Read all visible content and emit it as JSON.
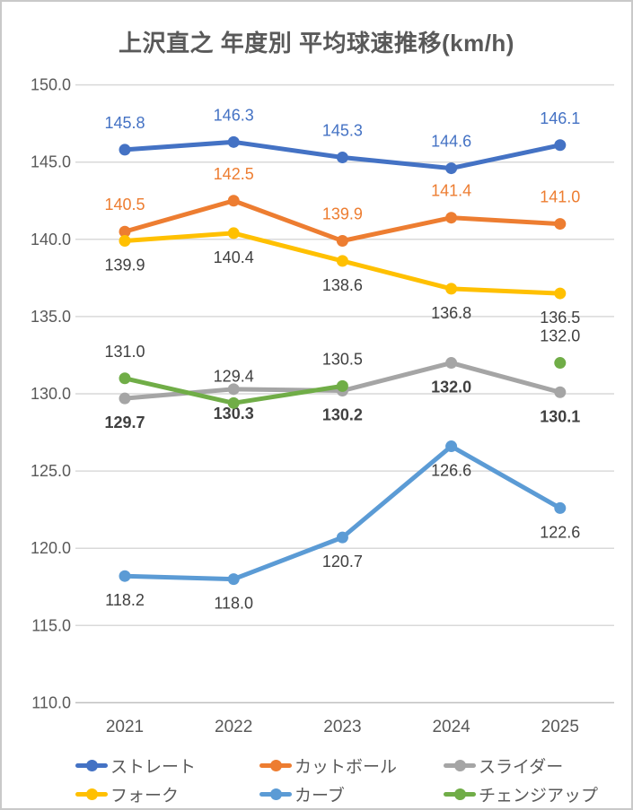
{
  "chart_data": {
    "type": "line",
    "title": "上沢直之 年度別 平均球速推移(km/h)",
    "categories": [
      "2021",
      "2022",
      "2023",
      "2024",
      "2025"
    ],
    "series": [
      {
        "id": "fastball",
        "name": "ストレート",
        "color": "#4472C4",
        "values": [
          145.8,
          146.3,
          145.3,
          144.6,
          146.1
        ],
        "label_color": "#4472C4",
        "label_position": "above",
        "label_bold": false
      },
      {
        "id": "cutter",
        "name": "カットボール",
        "color": "#ED7D31",
        "values": [
          140.5,
          142.5,
          139.9,
          141.4,
          141.0
        ],
        "label_color": "#ED7D31",
        "label_position": "above",
        "label_bold": false
      },
      {
        "id": "slider",
        "name": "スライダー",
        "color": "#A5A5A5",
        "values": [
          129.7,
          130.3,
          130.2,
          132.0,
          130.1
        ],
        "label_color": "#404040",
        "label_position": "below",
        "label_bold": true
      },
      {
        "id": "fork",
        "name": "フォーク",
        "color": "#FFC000",
        "values": [
          139.9,
          140.4,
          138.6,
          136.8,
          136.5
        ],
        "label_color": "#404040",
        "label_position": "below",
        "label_bold": false
      },
      {
        "id": "curve",
        "name": "カーブ",
        "color": "#5B9BD5",
        "values": [
          118.2,
          118.0,
          120.7,
          126.6,
          122.6
        ],
        "label_color": "#404040",
        "label_position": "below",
        "label_bold": false
      },
      {
        "id": "changeup",
        "name": "チェンジアップ",
        "color": "#70AD47",
        "values": [
          131.0,
          129.4,
          130.5,
          null,
          132.0
        ],
        "label_color": "#404040",
        "label_position": "above",
        "label_bold": false
      }
    ],
    "y_axis": {
      "min": 110,
      "max": 150,
      "step": 5,
      "ticks": [
        "150.0",
        "145.0",
        "140.0",
        "135.0",
        "130.0",
        "125.0",
        "120.0",
        "115.0",
        "110.0"
      ]
    },
    "x_axis": {
      "ticks": [
        "2021",
        "2022",
        "2023",
        "2024",
        "2025"
      ]
    },
    "legend": {
      "position": "bottom",
      "rows": [
        [
          "fastball",
          "cutter",
          "slider"
        ],
        [
          "fork",
          "curve",
          "changeup"
        ]
      ]
    },
    "grid": true,
    "colors": {
      "grid_line": "#D9D9D9",
      "axis_line": "#BFBFBF",
      "axis_text": "#595959",
      "title_text": "#595959",
      "legend_text": "#595959"
    }
  }
}
